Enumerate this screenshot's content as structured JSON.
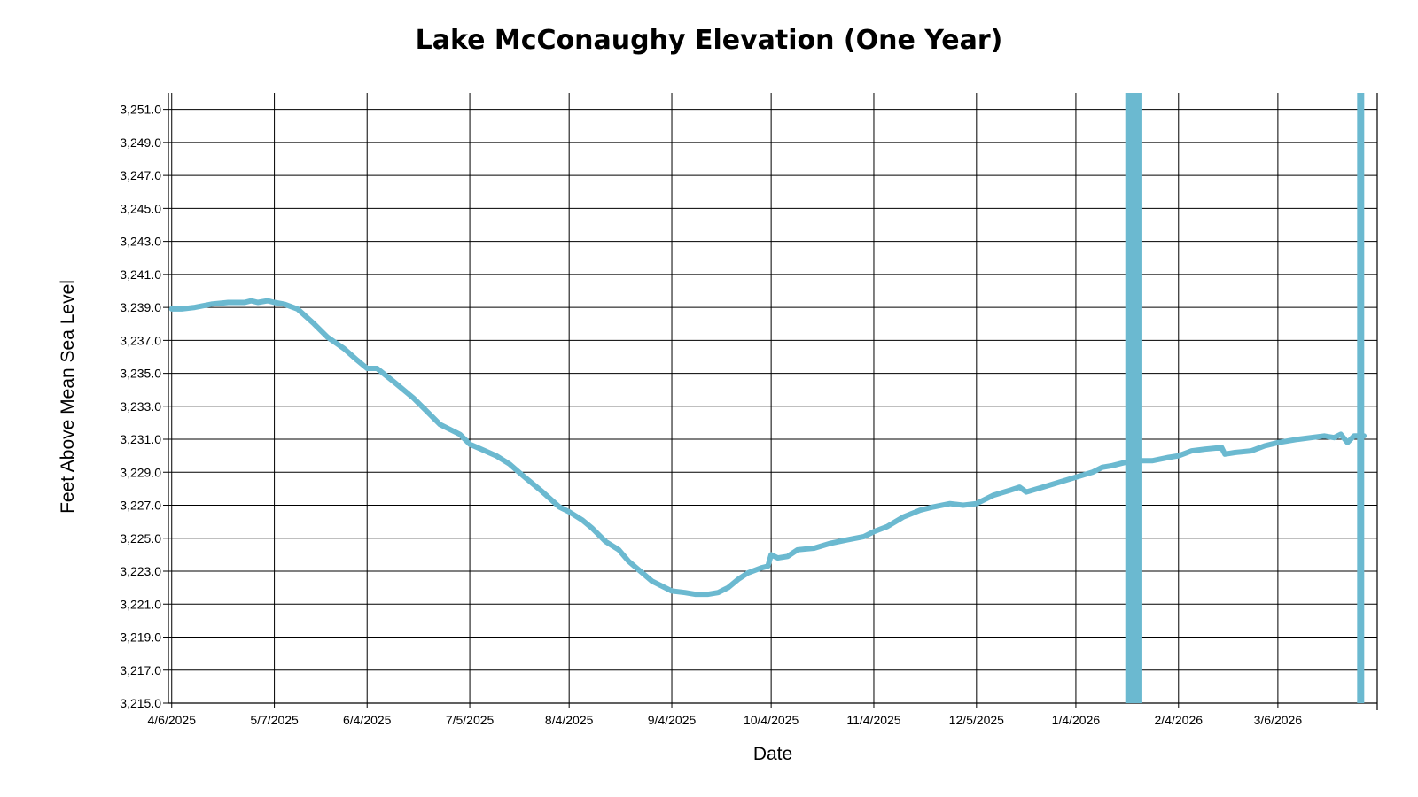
{
  "chart_data": {
    "type": "line",
    "title": "Lake McConaughy Elevation (One Year)",
    "xlabel": "Date",
    "ylabel": "Feet Above Mean Sea Level",
    "ylim": [
      3215.0,
      3252.0
    ],
    "xlim": [
      "2025-04-05",
      "2026-04-05"
    ],
    "yticks": [
      3215,
      3217,
      3219,
      3221,
      3223,
      3225,
      3227,
      3229,
      3231,
      3233,
      3235,
      3237,
      3239,
      3241,
      3243,
      3245,
      3247,
      3249,
      3251
    ],
    "ytick_labels": [
      "3,215.0",
      "3,217.0",
      "3,219.0",
      "3,221.0",
      "3,223.0",
      "3,225.0",
      "3,227.0",
      "3,229.0",
      "3,231.0",
      "3,233.0",
      "3,235.0",
      "3,237.0",
      "3,239.0",
      "3,241.0",
      "3,243.0",
      "3,245.0",
      "3,247.0",
      "3,249.0",
      "3,251.0"
    ],
    "xticks": [
      {
        "date": "2025-04-06",
        "label": "4/6/2025"
      },
      {
        "date": "2025-05-07",
        "label": "5/7/2025"
      },
      {
        "date": "2025-06-04",
        "label": "6/4/2025"
      },
      {
        "date": "2025-07-05",
        "label": "7/5/2025"
      },
      {
        "date": "2025-08-04",
        "label": "8/4/2025"
      },
      {
        "date": "2025-09-04",
        "label": "9/4/2025"
      },
      {
        "date": "2025-10-04",
        "label": "10/4/2025"
      },
      {
        "date": "2025-11-04",
        "label": "11/4/2025"
      },
      {
        "date": "2025-12-05",
        "label": "12/5/2025"
      },
      {
        "date": "2026-01-04",
        "label": "1/4/2026"
      },
      {
        "date": "2026-02-04",
        "label": "2/4/2026"
      },
      {
        "date": "2026-03-06",
        "label": "3/6/2026"
      }
    ],
    "grid": true,
    "series": [
      {
        "color": "#6bb9d0",
        "points": [
          [
            "2025-04-06",
            3238.9
          ],
          [
            "2025-04-09",
            3238.9
          ],
          [
            "2025-04-13",
            3239.0
          ],
          [
            "2025-04-18",
            3239.2
          ],
          [
            "2025-04-23",
            3239.3
          ],
          [
            "2025-04-28",
            3239.3
          ],
          [
            "2025-04-30",
            3239.4
          ],
          [
            "2025-05-02",
            3239.3
          ],
          [
            "2025-05-05",
            3239.4
          ],
          [
            "2025-05-07",
            3239.3
          ],
          [
            "2025-05-10",
            3239.2
          ],
          [
            "2025-05-14",
            3238.9
          ],
          [
            "2025-05-19",
            3238.0
          ],
          [
            "2025-05-23",
            3237.2
          ],
          [
            "2025-05-28",
            3236.5
          ],
          [
            "2025-06-01",
            3235.8
          ],
          [
            "2025-06-04",
            3235.3
          ],
          [
            "2025-06-07",
            3235.3
          ],
          [
            "2025-06-12",
            3234.5
          ],
          [
            "2025-06-18",
            3233.5
          ],
          [
            "2025-06-22",
            3232.7
          ],
          [
            "2025-06-26",
            3231.9
          ],
          [
            "2025-07-02",
            3231.3
          ],
          [
            "2025-07-05",
            3230.7
          ],
          [
            "2025-07-13",
            3230.0
          ],
          [
            "2025-07-17",
            3229.5
          ],
          [
            "2025-07-21",
            3228.8
          ],
          [
            "2025-07-27",
            3227.8
          ],
          [
            "2025-08-01",
            3226.9
          ],
          [
            "2025-08-04",
            3226.6
          ],
          [
            "2025-08-08",
            3226.1
          ],
          [
            "2025-08-11",
            3225.6
          ],
          [
            "2025-08-15",
            3224.8
          ],
          [
            "2025-08-19",
            3224.3
          ],
          [
            "2025-08-22",
            3223.6
          ],
          [
            "2025-08-29",
            3222.4
          ],
          [
            "2025-09-04",
            3221.8
          ],
          [
            "2025-09-08",
            3221.7
          ],
          [
            "2025-09-11",
            3221.6
          ],
          [
            "2025-09-15",
            3221.6
          ],
          [
            "2025-09-18",
            3221.7
          ],
          [
            "2025-09-21",
            3222.0
          ],
          [
            "2025-09-24",
            3222.5
          ],
          [
            "2025-09-27",
            3222.9
          ],
          [
            "2025-10-01",
            3223.2
          ],
          [
            "2025-10-03",
            3223.3
          ],
          [
            "2025-10-04",
            3224.0
          ],
          [
            "2025-10-06",
            3223.8
          ],
          [
            "2025-10-09",
            3223.9
          ],
          [
            "2025-10-12",
            3224.3
          ],
          [
            "2025-10-17",
            3224.4
          ],
          [
            "2025-10-22",
            3224.7
          ],
          [
            "2025-10-27",
            3224.9
          ],
          [
            "2025-11-01",
            3225.1
          ],
          [
            "2025-11-04",
            3225.4
          ],
          [
            "2025-11-08",
            3225.7
          ],
          [
            "2025-11-13",
            3226.3
          ],
          [
            "2025-11-18",
            3226.7
          ],
          [
            "2025-11-22",
            3226.9
          ],
          [
            "2025-11-27",
            3227.1
          ],
          [
            "2025-12-01",
            3227.0
          ],
          [
            "2025-12-05",
            3227.1
          ],
          [
            "2025-12-10",
            3227.6
          ],
          [
            "2025-12-15",
            3227.9
          ],
          [
            "2025-12-18",
            3228.1
          ],
          [
            "2025-12-20",
            3227.8
          ],
          [
            "2025-12-25",
            3228.1
          ],
          [
            "2025-12-30",
            3228.4
          ],
          [
            "2026-01-04",
            3228.7
          ],
          [
            "2026-01-09",
            3229.0
          ],
          [
            "2026-01-12",
            3229.3
          ],
          [
            "2026-01-15",
            3229.4
          ],
          [
            "2026-01-19",
            3229.6
          ],
          [
            "2026-01-22",
            3229.7
          ],
          [
            "2026-01-27",
            3229.7
          ],
          [
            "2026-02-01",
            3229.9
          ],
          [
            "2026-02-04",
            3230.0
          ],
          [
            "2026-02-08",
            3230.3
          ],
          [
            "2026-02-12",
            3230.4
          ],
          [
            "2026-02-17",
            3230.5
          ],
          [
            "2026-02-18",
            3230.1
          ],
          [
            "2026-02-21",
            3230.2
          ],
          [
            "2026-02-26",
            3230.3
          ],
          [
            "2026-03-02",
            3230.6
          ],
          [
            "2026-03-06",
            3230.8
          ],
          [
            "2026-03-12",
            3231.0
          ],
          [
            "2026-03-16",
            3231.1
          ],
          [
            "2026-03-20",
            3231.2
          ],
          [
            "2026-03-23",
            3231.1
          ],
          [
            "2026-03-25",
            3231.3
          ],
          [
            "2026-03-27",
            3230.8
          ],
          [
            "2026-03-29",
            3231.2
          ],
          [
            "2026-04-01",
            3231.2
          ]
        ],
        "spikes": [
          [
            "2026-01-20",
            3215.0,
            3252.0
          ],
          [
            "2026-01-21",
            3215.0,
            3252.0
          ],
          [
            "2026-01-23",
            3215.0,
            3252.0
          ],
          [
            "2026-03-31",
            3215.0,
            3252.0
          ]
        ]
      }
    ]
  }
}
